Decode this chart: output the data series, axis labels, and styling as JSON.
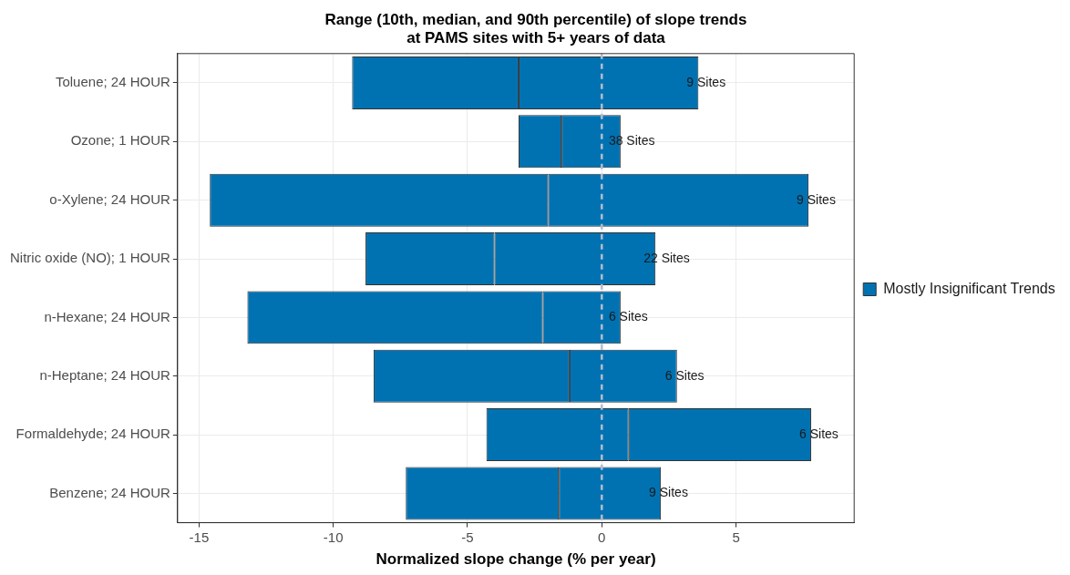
{
  "chart_data": {
    "type": "bar",
    "orientation": "horizontal",
    "title": "Range (10th, median, and 90th percentile) of slope trends\nat PAMS sites with 5+ years of data",
    "xlabel": "Normalized slope change (% per year)",
    "categories": [
      "Toluene; 24 HOUR",
      "Ozone; 1 HOUR",
      "o-Xylene; 24 HOUR",
      "Nitric oxide (NO); 1 HOUR",
      "n-Hexane; 24 HOUR",
      "n-Heptane; 24 HOUR",
      "Formaldehyde; 24 HOUR",
      "Benzene; 24 HOUR"
    ],
    "series": [
      {
        "name": "Mostly Insignificant Trends",
        "color": "#0072b2",
        "base": [
          -9.3,
          -3.1,
          -14.6,
          -8.8,
          -13.2,
          -8.5,
          -4.3,
          -7.3
        ],
        "values": [
          6.2,
          1.6,
          12.6,
          4.8,
          11.0,
          7.3,
          5.3,
          5.7
        ]
      },
      {
        "color": "#0072b2",
        "base": [
          -3.1,
          -1.5,
          -2.0,
          -4.0,
          -2.2,
          -1.2,
          1.0,
          -1.6
        ],
        "values": [
          6.7,
          2.2,
          9.7,
          6.0,
          2.9,
          4.0,
          6.8,
          3.8
        ]
      }
    ],
    "xlim": [
      -15.8,
      9.4
    ],
    "xticks": [
      -15,
      -10,
      -5,
      0,
      5
    ],
    "grid": true,
    "legend": "right",
    "ref_lines": [
      {
        "axis": "x",
        "value": 0,
        "color": "#b4bccc",
        "line_style": "dashed"
      }
    ],
    "annotations": [
      "9 Sites",
      "38 Sites",
      "9 Sites",
      "22 Sites",
      "6 Sites",
      "6 Sites",
      "6 Sites",
      "9 Sites"
    ]
  }
}
